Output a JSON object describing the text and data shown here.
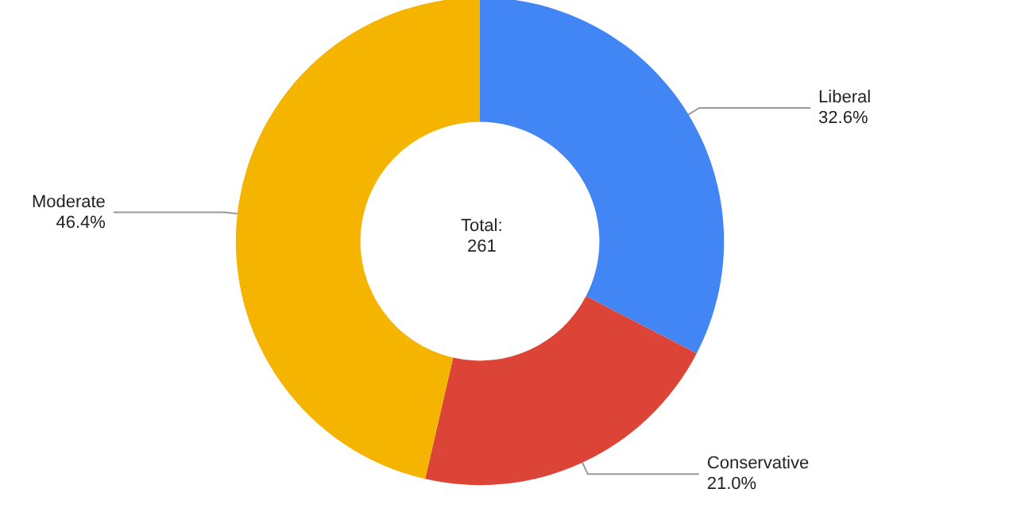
{
  "chart_data": {
    "type": "donut",
    "categories": [
      "Liberal",
      "Conservative",
      "Moderate"
    ],
    "values": [
      32.6,
      21.0,
      46.4
    ],
    "value_labels": [
      "32.6%",
      "21.0%",
      "46.4%"
    ],
    "colors": [
      "#4285f4",
      "#db4437",
      "#f4b400"
    ],
    "annotations": [
      "Total:",
      "261"
    ],
    "legend": false
  }
}
